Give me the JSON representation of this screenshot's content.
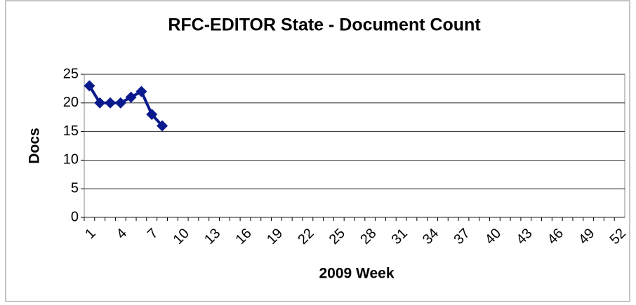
{
  "chart_data": {
    "type": "line",
    "title": "RFC-EDITOR State - Document Count",
    "x_label": "2009 Week",
    "y_label": "Docs",
    "categories": [
      1,
      null,
      null,
      4,
      null,
      null,
      7,
      null,
      null,
      10,
      null,
      null,
      13,
      null,
      null,
      16,
      null,
      null,
      19,
      null,
      null,
      22,
      null,
      null,
      25,
      null,
      null,
      28,
      null,
      null,
      31,
      null,
      null,
      34,
      null,
      null,
      37,
      null,
      null,
      40,
      null,
      null,
      43,
      null,
      null,
      46,
      null,
      null,
      49,
      null,
      null,
      52
    ],
    "values": [
      23,
      20,
      20,
      20,
      21,
      22,
      18,
      16,
      null,
      null,
      null,
      null,
      null,
      null,
      null,
      null,
      null,
      null,
      null,
      null,
      null,
      null,
      null,
      null,
      null,
      null,
      null,
      null,
      null,
      null,
      null,
      null,
      null,
      null,
      null,
      null,
      null,
      null,
      null,
      null,
      null,
      null,
      null,
      null,
      null,
      null,
      null,
      null,
      null,
      null,
      null,
      null
    ],
    "color": "#0a1a8c",
    "ylim": [
      0,
      25
    ],
    "yticks": [
      0,
      5,
      10,
      15,
      20,
      25
    ],
    "grid": true
  }
}
